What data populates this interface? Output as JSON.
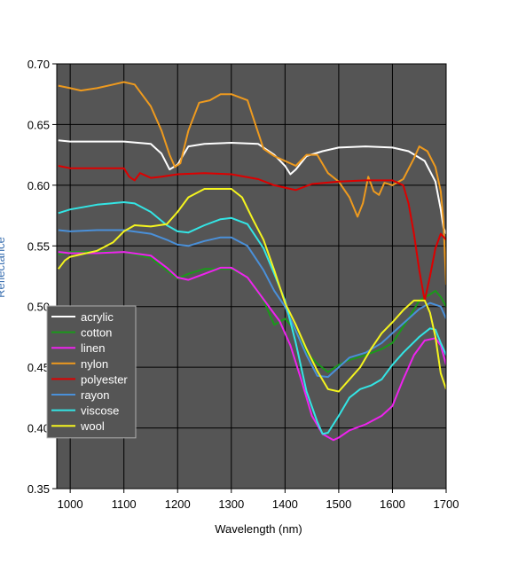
{
  "chart_data": {
    "type": "line",
    "title": "",
    "xlabel": "Wavelength (nm)",
    "ylabel": "Reflectance",
    "xlim": [
      975,
      1700
    ],
    "ylim": [
      0.35,
      0.7
    ],
    "x_ticks": [
      1000,
      1100,
      1200,
      1300,
      1400,
      1500,
      1600,
      1700
    ],
    "y_ticks": [
      0.35,
      0.4,
      0.45,
      0.5,
      0.55,
      0.6,
      0.65,
      0.7
    ],
    "x_tick_labels": [
      "1000",
      "1100",
      "1200",
      "1300",
      "1400",
      "1500",
      "1600",
      "1700"
    ],
    "y_tick_labels": [
      "0.35",
      "0.40",
      "0.45",
      "0.50",
      "0.55",
      "0.60",
      "0.65",
      "0.70"
    ],
    "grid": true,
    "plot_background": "#555555",
    "legend_position": "left",
    "series": [
      {
        "name": "acrylic",
        "color": "#ffffff",
        "points": [
          [
            978,
            0.637
          ],
          [
            1000,
            0.636
          ],
          [
            1050,
            0.636
          ],
          [
            1100,
            0.636
          ],
          [
            1150,
            0.634
          ],
          [
            1170,
            0.626
          ],
          [
            1185,
            0.613
          ],
          [
            1200,
            0.617
          ],
          [
            1220,
            0.632
          ],
          [
            1250,
            0.634
          ],
          [
            1300,
            0.635
          ],
          [
            1350,
            0.634
          ],
          [
            1380,
            0.625
          ],
          [
            1400,
            0.616
          ],
          [
            1410,
            0.609
          ],
          [
            1420,
            0.613
          ],
          [
            1440,
            0.624
          ],
          [
            1470,
            0.628
          ],
          [
            1500,
            0.631
          ],
          [
            1550,
            0.632
          ],
          [
            1600,
            0.631
          ],
          [
            1630,
            0.628
          ],
          [
            1660,
            0.62
          ],
          [
            1680,
            0.603
          ],
          [
            1690,
            0.58
          ],
          [
            1695,
            0.565
          ],
          [
            1700,
            0.56
          ]
        ]
      },
      {
        "name": "cotton",
        "color": "#1a9a1a",
        "points": [
          [
            978,
            0.543
          ],
          [
            1000,
            0.545
          ],
          [
            1050,
            0.545
          ],
          [
            1100,
            0.545
          ],
          [
            1150,
            0.54
          ],
          [
            1200,
            0.523
          ],
          [
            1220,
            0.527
          ],
          [
            1250,
            0.531
          ],
          [
            1280,
            0.531
          ],
          [
            1300,
            0.531
          ],
          [
            1330,
            0.524
          ],
          [
            1360,
            0.505
          ],
          [
            1380,
            0.485
          ],
          [
            1400,
            0.49
          ],
          [
            1420,
            0.48
          ],
          [
            1440,
            0.462
          ],
          [
            1460,
            0.453
          ],
          [
            1480,
            0.446
          ],
          [
            1500,
            0.452
          ],
          [
            1520,
            0.456
          ],
          [
            1550,
            0.46
          ],
          [
            1580,
            0.465
          ],
          [
            1600,
            0.47
          ],
          [
            1630,
            0.49
          ],
          [
            1650,
            0.505
          ],
          [
            1670,
            0.51
          ],
          [
            1680,
            0.513
          ],
          [
            1690,
            0.508
          ],
          [
            1700,
            0.5
          ]
        ]
      },
      {
        "name": "linen",
        "color": "#ee22ee",
        "points": [
          [
            978,
            0.545
          ],
          [
            1000,
            0.544
          ],
          [
            1050,
            0.544
          ],
          [
            1100,
            0.545
          ],
          [
            1150,
            0.542
          ],
          [
            1180,
            0.532
          ],
          [
            1200,
            0.524
          ],
          [
            1220,
            0.522
          ],
          [
            1250,
            0.527
          ],
          [
            1280,
            0.532
          ],
          [
            1300,
            0.532
          ],
          [
            1330,
            0.524
          ],
          [
            1360,
            0.506
          ],
          [
            1390,
            0.488
          ],
          [
            1410,
            0.468
          ],
          [
            1430,
            0.44
          ],
          [
            1450,
            0.41
          ],
          [
            1470,
            0.395
          ],
          [
            1490,
            0.39
          ],
          [
            1500,
            0.392
          ],
          [
            1520,
            0.398
          ],
          [
            1550,
            0.403
          ],
          [
            1580,
            0.41
          ],
          [
            1600,
            0.418
          ],
          [
            1620,
            0.44
          ],
          [
            1640,
            0.46
          ],
          [
            1660,
            0.472
          ],
          [
            1680,
            0.474
          ],
          [
            1690,
            0.468
          ],
          [
            1700,
            0.452
          ]
        ]
      },
      {
        "name": "nylon",
        "color": "#ee9a1e",
        "points": [
          [
            978,
            0.682
          ],
          [
            1000,
            0.68
          ],
          [
            1020,
            0.678
          ],
          [
            1050,
            0.68
          ],
          [
            1080,
            0.683
          ],
          [
            1100,
            0.685
          ],
          [
            1120,
            0.683
          ],
          [
            1150,
            0.665
          ],
          [
            1170,
            0.645
          ],
          [
            1185,
            0.625
          ],
          [
            1195,
            0.615
          ],
          [
            1205,
            0.618
          ],
          [
            1220,
            0.645
          ],
          [
            1240,
            0.668
          ],
          [
            1260,
            0.67
          ],
          [
            1280,
            0.675
          ],
          [
            1300,
            0.675
          ],
          [
            1330,
            0.67
          ],
          [
            1345,
            0.65
          ],
          [
            1360,
            0.63
          ],
          [
            1380,
            0.624
          ],
          [
            1400,
            0.62
          ],
          [
            1420,
            0.616
          ],
          [
            1440,
            0.625
          ],
          [
            1460,
            0.625
          ],
          [
            1480,
            0.61
          ],
          [
            1500,
            0.603
          ],
          [
            1520,
            0.59
          ],
          [
            1535,
            0.574
          ],
          [
            1545,
            0.585
          ],
          [
            1555,
            0.607
          ],
          [
            1565,
            0.595
          ],
          [
            1575,
            0.592
          ],
          [
            1585,
            0.602
          ],
          [
            1600,
            0.6
          ],
          [
            1620,
            0.605
          ],
          [
            1640,
            0.622
          ],
          [
            1650,
            0.632
          ],
          [
            1665,
            0.628
          ],
          [
            1680,
            0.615
          ],
          [
            1690,
            0.595
          ],
          [
            1695,
            0.57
          ],
          [
            1700,
            0.518
          ]
        ]
      },
      {
        "name": "polyester",
        "color": "#dd0000",
        "points": [
          [
            978,
            0.616
          ],
          [
            1000,
            0.614
          ],
          [
            1050,
            0.614
          ],
          [
            1100,
            0.614
          ],
          [
            1110,
            0.607
          ],
          [
            1120,
            0.604
          ],
          [
            1130,
            0.61
          ],
          [
            1150,
            0.606
          ],
          [
            1170,
            0.607
          ],
          [
            1200,
            0.609
          ],
          [
            1250,
            0.61
          ],
          [
            1300,
            0.609
          ],
          [
            1350,
            0.605
          ],
          [
            1380,
            0.6
          ],
          [
            1400,
            0.598
          ],
          [
            1420,
            0.596
          ],
          [
            1450,
            0.601
          ],
          [
            1500,
            0.603
          ],
          [
            1550,
            0.604
          ],
          [
            1600,
            0.604
          ],
          [
            1620,
            0.6
          ],
          [
            1630,
            0.585
          ],
          [
            1640,
            0.56
          ],
          [
            1650,
            0.53
          ],
          [
            1660,
            0.505
          ],
          [
            1670,
            0.525
          ],
          [
            1680,
            0.548
          ],
          [
            1690,
            0.56
          ],
          [
            1700,
            0.555
          ]
        ]
      },
      {
        "name": "rayon",
        "color": "#4a90d9",
        "points": [
          [
            978,
            0.563
          ],
          [
            1000,
            0.562
          ],
          [
            1050,
            0.563
          ],
          [
            1100,
            0.563
          ],
          [
            1150,
            0.56
          ],
          [
            1180,
            0.555
          ],
          [
            1200,
            0.551
          ],
          [
            1220,
            0.55
          ],
          [
            1250,
            0.554
          ],
          [
            1280,
            0.557
          ],
          [
            1300,
            0.557
          ],
          [
            1330,
            0.55
          ],
          [
            1360,
            0.53
          ],
          [
            1380,
            0.513
          ],
          [
            1400,
            0.5
          ],
          [
            1420,
            0.48
          ],
          [
            1440,
            0.46
          ],
          [
            1460,
            0.443
          ],
          [
            1480,
            0.442
          ],
          [
            1500,
            0.45
          ],
          [
            1520,
            0.458
          ],
          [
            1550,
            0.462
          ],
          [
            1580,
            0.47
          ],
          [
            1600,
            0.478
          ],
          [
            1630,
            0.49
          ],
          [
            1650,
            0.498
          ],
          [
            1670,
            0.503
          ],
          [
            1690,
            0.5
          ],
          [
            1700,
            0.49
          ]
        ]
      },
      {
        "name": "viscose",
        "color": "#33e5e5",
        "points": [
          [
            978,
            0.577
          ],
          [
            1000,
            0.58
          ],
          [
            1050,
            0.584
          ],
          [
            1100,
            0.586
          ],
          [
            1120,
            0.585
          ],
          [
            1150,
            0.578
          ],
          [
            1180,
            0.567
          ],
          [
            1200,
            0.562
          ],
          [
            1220,
            0.561
          ],
          [
            1250,
            0.567
          ],
          [
            1280,
            0.572
          ],
          [
            1300,
            0.573
          ],
          [
            1330,
            0.568
          ],
          [
            1360,
            0.548
          ],
          [
            1380,
            0.527
          ],
          [
            1400,
            0.505
          ],
          [
            1420,
            0.47
          ],
          [
            1440,
            0.43
          ],
          [
            1460,
            0.405
          ],
          [
            1470,
            0.395
          ],
          [
            1480,
            0.396
          ],
          [
            1500,
            0.41
          ],
          [
            1520,
            0.425
          ],
          [
            1540,
            0.432
          ],
          [
            1560,
            0.435
          ],
          [
            1580,
            0.44
          ],
          [
            1600,
            0.452
          ],
          [
            1620,
            0.462
          ],
          [
            1650,
            0.475
          ],
          [
            1670,
            0.482
          ],
          [
            1680,
            0.481
          ],
          [
            1690,
            0.47
          ],
          [
            1700,
            0.46
          ]
        ]
      },
      {
        "name": "wool",
        "color": "#f5f51e",
        "points": [
          [
            978,
            0.531
          ],
          [
            990,
            0.538
          ],
          [
            1000,
            0.541
          ],
          [
            1050,
            0.546
          ],
          [
            1080,
            0.553
          ],
          [
            1100,
            0.562
          ],
          [
            1120,
            0.567
          ],
          [
            1150,
            0.566
          ],
          [
            1180,
            0.568
          ],
          [
            1200,
            0.578
          ],
          [
            1220,
            0.59
          ],
          [
            1250,
            0.597
          ],
          [
            1280,
            0.597
          ],
          [
            1300,
            0.597
          ],
          [
            1320,
            0.59
          ],
          [
            1340,
            0.572
          ],
          [
            1360,
            0.555
          ],
          [
            1380,
            0.53
          ],
          [
            1400,
            0.503
          ],
          [
            1420,
            0.485
          ],
          [
            1440,
            0.465
          ],
          [
            1460,
            0.447
          ],
          [
            1480,
            0.432
          ],
          [
            1500,
            0.43
          ],
          [
            1520,
            0.44
          ],
          [
            1540,
            0.45
          ],
          [
            1560,
            0.465
          ],
          [
            1580,
            0.478
          ],
          [
            1600,
            0.487
          ],
          [
            1620,
            0.497
          ],
          [
            1640,
            0.505
          ],
          [
            1660,
            0.505
          ],
          [
            1670,
            0.495
          ],
          [
            1680,
            0.475
          ],
          [
            1690,
            0.445
          ],
          [
            1700,
            0.432
          ]
        ]
      }
    ]
  }
}
